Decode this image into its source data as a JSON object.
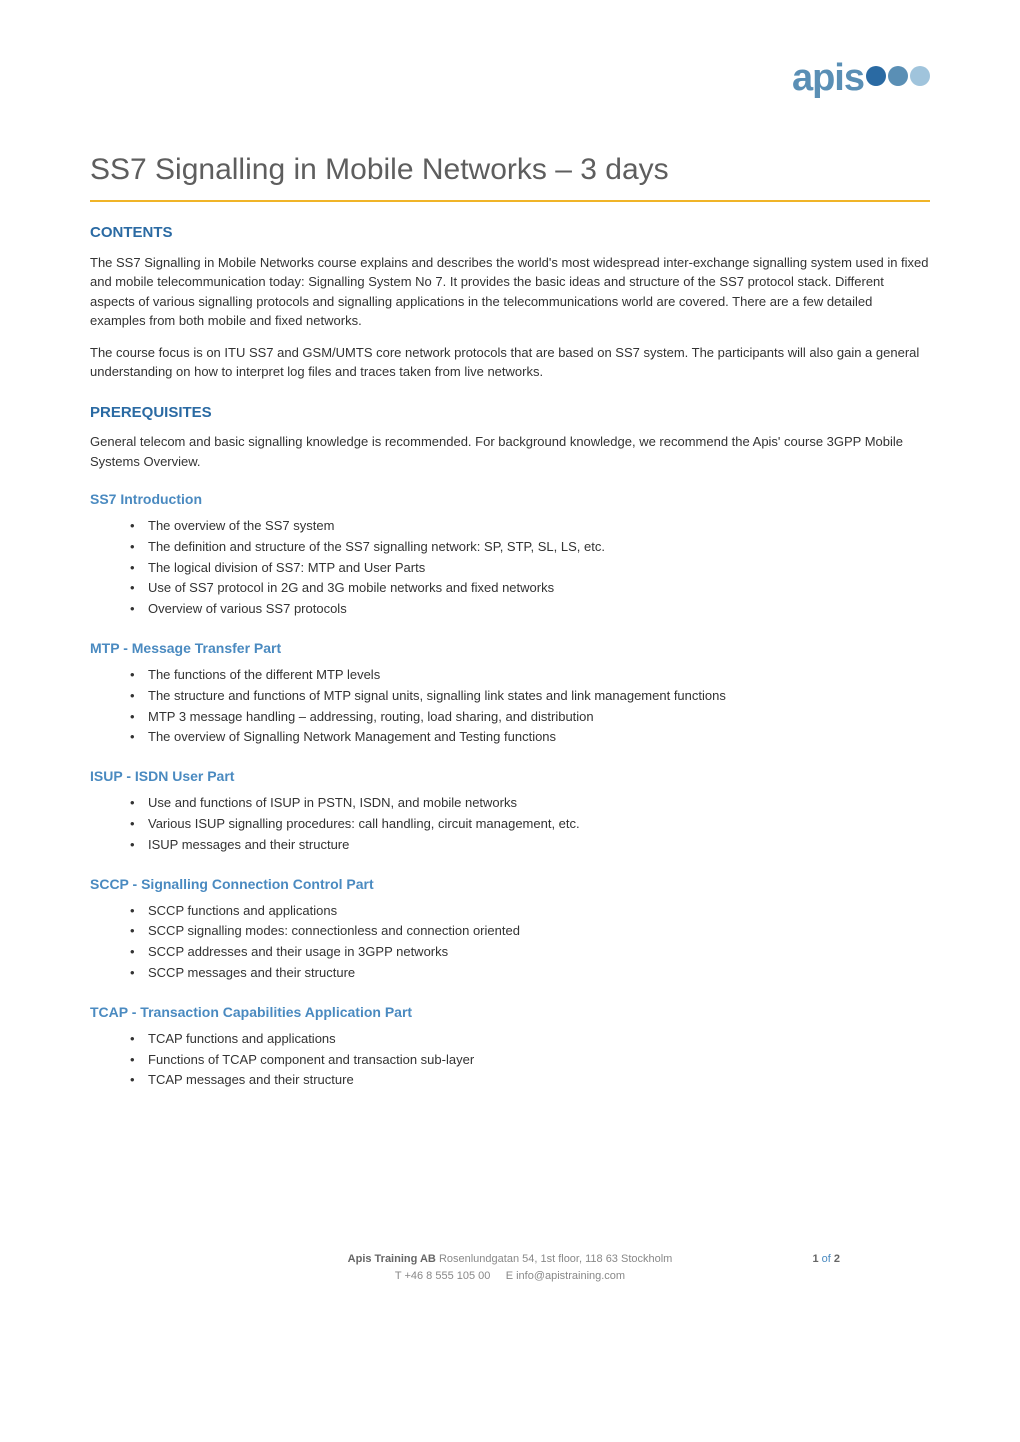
{
  "logo": {
    "text": "apis",
    "text_color": "#5a8fb5",
    "dots": [
      {
        "color": "#2a6aa3"
      },
      {
        "color": "#5a8fb5"
      },
      {
        "color": "#a0c4dc"
      }
    ]
  },
  "main_title": "SS7 Signalling in Mobile Networks – 3 days",
  "title_underline_color": "#f0b428",
  "sections": {
    "contents": {
      "heading": "CONTENTS",
      "para1": "The SS7 Signalling in Mobile Networks course explains and describes the world's most widespread inter-exchange signalling system used in fixed and mobile telecommunication today: Signalling System No 7. It provides the basic ideas and structure of the SS7 protocol stack. Different aspects of various signalling protocols and signalling applications in the telecommunications world are covered. There are a few detailed examples from both mobile and fixed networks.",
      "para2": "The course focus is on ITU SS7 and GSM/UMTS core network protocols that are based on SS7 system. The participants will also gain a general understanding on how to interpret log files and traces taken from live networks."
    },
    "prerequisites": {
      "heading": "PREREQUISITES",
      "para": "General telecom and basic signalling knowledge is recommended. For background knowledge, we recommend the Apis' course 3GPP Mobile Systems Overview."
    },
    "ss7_intro": {
      "heading": "SS7 Introduction",
      "items": [
        "The overview of the SS7 system",
        "The definition and structure of the SS7 signalling network: SP, STP, SL, LS, etc.",
        "The logical division of SS7: MTP and User Parts",
        "Use of SS7 protocol in 2G and 3G mobile networks and fixed networks",
        "Overview of various SS7 protocols"
      ]
    },
    "mtp": {
      "heading": "MTP - Message Transfer Part",
      "items": [
        "The functions of the different MTP levels",
        "The structure and functions of MTP signal units, signalling link states and link management functions",
        "MTP 3 message handling – addressing, routing, load sharing, and distribution",
        "The overview of Signalling Network Management and Testing functions"
      ]
    },
    "isup": {
      "heading": "ISUP - ISDN User Part",
      "items": [
        "Use and functions of ISUP in PSTN, ISDN, and mobile networks",
        "Various ISUP signalling procedures: call handling, circuit management, etc.",
        "ISUP messages and their structure"
      ]
    },
    "sccp": {
      "heading": "SCCP - Signalling Connection Control Part",
      "items": [
        "SCCP functions and applications",
        "SCCP signalling modes: connectionless and connection oriented",
        "SCCP addresses and their usage in 3GPP networks",
        "SCCP messages and their structure"
      ]
    },
    "tcap": {
      "heading": "TCAP - Transaction Capabilities Application Part",
      "items": [
        "TCAP functions and applications",
        "Functions of TCAP component and transaction sub-layer",
        "TCAP messages and their structure"
      ]
    }
  },
  "footer": {
    "company": "Apis Training AB",
    "address": "Rosenlundgatan 54, 1st floor, 118 63 Stockholm",
    "phone": "T +46 8 555 105 00",
    "email": "E info@apistraining.com",
    "page_current": "1",
    "page_of": "of",
    "page_total": "2"
  },
  "colors": {
    "heading_primary": "#2a6aa3",
    "heading_secondary": "#4a8ac0",
    "text": "#333333",
    "title_text": "#5e5e5e",
    "footer_text": "#888888"
  }
}
